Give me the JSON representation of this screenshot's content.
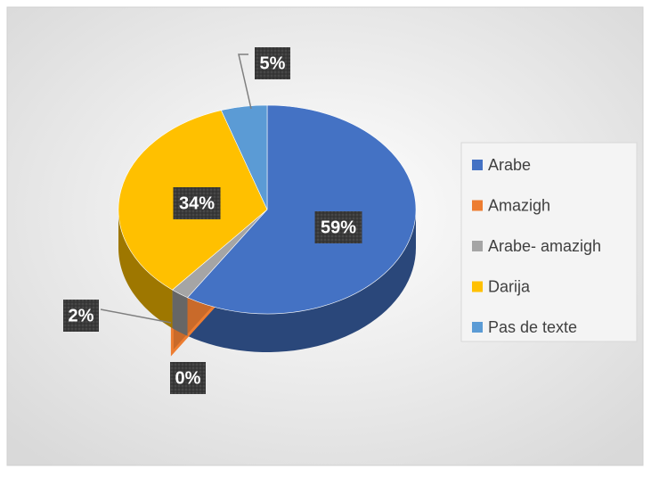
{
  "chart_data": {
    "type": "pie",
    "categories": [
      "Arabe",
      "Amazigh",
      "Arabe- amazigh",
      "Darija",
      "Pas de texte"
    ],
    "values": [
      59,
      0,
      2,
      34,
      5
    ],
    "value_labels": [
      "59%",
      "0%",
      "2%",
      "34%",
      "5%"
    ],
    "colors": [
      "#4472c4",
      "#ed7d31",
      "#a5a5a5",
      "#ffc000",
      "#5b9bd5"
    ],
    "legend": "right"
  }
}
